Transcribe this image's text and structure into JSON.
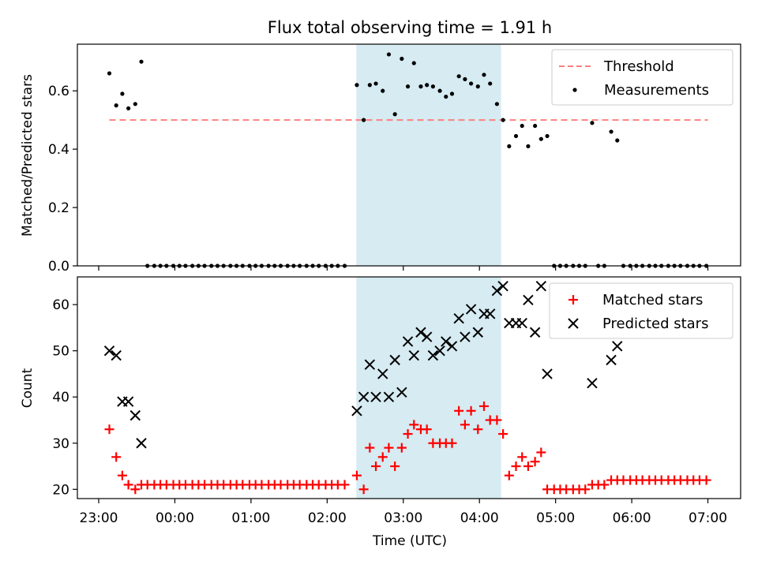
{
  "figure": {
    "title": "Flux total observing time = 1.91 h"
  },
  "colors": {
    "threshold": "#ff8080",
    "measurements": "#000000",
    "matched": "#ff0000",
    "predicted": "#000000",
    "shade": "#add8e6"
  },
  "chart_data": [
    {
      "type": "scatter",
      "title": "Flux total observing time = 1.91 h",
      "xlabel": "",
      "ylabel": "Matched/Predicted stars",
      "x_unit": "hours since 23:00 UTC (tick labels show clock time)",
      "xlim": [
        -0.28,
        8.43
      ],
      "ylim": [
        0.0,
        0.76
      ],
      "yticks": [
        0.0,
        0.2,
        0.4,
        0.6
      ],
      "xticks": [
        "23:00",
        "00:00",
        "01:00",
        "02:00",
        "03:00",
        "04:00",
        "05:00",
        "06:00",
        "07:00"
      ],
      "shaded_interval": [
        "02:23",
        "04:17"
      ],
      "legend": {
        "position": "upper right",
        "entries": [
          "Threshold",
          "Measurements"
        ]
      },
      "series": [
        {
          "name": "Threshold",
          "style": "dashed-line",
          "x": [
            0.14,
            8.0
          ],
          "y": [
            0.5,
            0.5
          ]
        },
        {
          "name": "Measurements",
          "style": "dot",
          "points": [
            [
              0.14,
              0.66
            ],
            [
              0.23,
              0.55
            ],
            [
              0.31,
              0.59
            ],
            [
              0.39,
              0.54
            ],
            [
              0.48,
              0.555
            ],
            [
              0.56,
              0.7
            ],
            [
              0.64,
              0.0
            ],
            [
              0.73,
              0.0
            ],
            [
              0.81,
              0.0
            ],
            [
              0.89,
              0.0
            ],
            [
              0.98,
              0.0
            ],
            [
              1.06,
              0.0
            ],
            [
              1.14,
              0.0
            ],
            [
              1.23,
              0.0
            ],
            [
              1.31,
              0.0
            ],
            [
              1.39,
              0.0
            ],
            [
              1.48,
              0.0
            ],
            [
              1.56,
              0.0
            ],
            [
              1.64,
              0.0
            ],
            [
              1.73,
              0.0
            ],
            [
              1.81,
              0.0
            ],
            [
              1.89,
              0.0
            ],
            [
              1.98,
              0.0
            ],
            [
              2.06,
              0.0
            ],
            [
              2.14,
              0.0
            ],
            [
              2.23,
              0.0
            ],
            [
              2.31,
              0.0
            ],
            [
              2.39,
              0.0
            ],
            [
              2.48,
              0.0
            ],
            [
              2.56,
              0.0
            ],
            [
              2.64,
              0.0
            ],
            [
              2.73,
              0.0
            ],
            [
              2.81,
              0.0
            ],
            [
              2.89,
              0.0
            ],
            [
              2.98,
              0.0
            ],
            [
              3.06,
              0.0
            ],
            [
              3.14,
              0.0
            ],
            [
              3.23,
              0.0
            ],
            [
              3.39,
              0.62
            ],
            [
              3.48,
              0.5
            ],
            [
              3.56,
              0.62
            ],
            [
              3.64,
              0.625
            ],
            [
              3.73,
              0.6
            ],
            [
              3.81,
              0.725
            ],
            [
              3.89,
              0.52
            ],
            [
              3.98,
              0.71
            ],
            [
              4.06,
              0.615
            ],
            [
              4.14,
              0.695
            ],
            [
              4.23,
              0.615
            ],
            [
              4.31,
              0.62
            ],
            [
              4.39,
              0.615
            ],
            [
              4.48,
              0.6
            ],
            [
              4.56,
              0.58
            ],
            [
              4.64,
              0.59
            ],
            [
              4.73,
              0.65
            ],
            [
              4.81,
              0.64
            ],
            [
              4.89,
              0.625
            ],
            [
              4.98,
              0.615
            ],
            [
              5.06,
              0.655
            ],
            [
              5.14,
              0.625
            ],
            [
              5.23,
              0.555
            ],
            [
              5.31,
              0.5
            ],
            [
              5.39,
              0.41
            ],
            [
              5.48,
              0.445
            ],
            [
              5.56,
              0.48
            ],
            [
              5.64,
              0.41
            ],
            [
              5.73,
              0.48
            ],
            [
              5.81,
              0.435
            ],
            [
              5.89,
              0.445
            ],
            [
              5.98,
              0.0
            ],
            [
              6.06,
              0.0
            ],
            [
              6.14,
              0.0
            ],
            [
              6.23,
              0.0
            ],
            [
              6.31,
              0.0
            ],
            [
              6.39,
              0.0
            ],
            [
              6.56,
              0.0
            ],
            [
              6.64,
              0.0
            ],
            [
              6.48,
              0.49
            ],
            [
              6.73,
              0.46
            ],
            [
              6.81,
              0.43
            ],
            [
              6.89,
              0.0
            ],
            [
              6.98,
              0.0
            ],
            [
              7.06,
              0.0
            ],
            [
              7.14,
              0.0
            ],
            [
              7.23,
              0.0
            ],
            [
              7.31,
              0.0
            ],
            [
              7.39,
              0.0
            ],
            [
              7.48,
              0.0
            ],
            [
              7.56,
              0.0
            ],
            [
              7.64,
              0.0
            ],
            [
              7.73,
              0.0
            ],
            [
              7.81,
              0.0
            ],
            [
              7.89,
              0.0
            ],
            [
              7.98,
              0.0
            ]
          ]
        }
      ]
    },
    {
      "type": "scatter",
      "title": "",
      "xlabel": "Time (UTC)",
      "ylabel": "Count",
      "x_unit": "hours since 23:00 UTC (tick labels show clock time)",
      "xlim": [
        -0.28,
        8.43
      ],
      "ylim": [
        18.0,
        66.0
      ],
      "yticks": [
        20,
        30,
        40,
        50,
        60
      ],
      "xticks": [
        "23:00",
        "00:00",
        "01:00",
        "02:00",
        "03:00",
        "04:00",
        "05:00",
        "06:00",
        "07:00"
      ],
      "shaded_interval": [
        "02:23",
        "04:17"
      ],
      "legend": {
        "position": "upper right",
        "entries": [
          "Matched stars",
          "Predicted stars"
        ]
      },
      "series": [
        {
          "name": "Matched stars",
          "style": "plus",
          "points": [
            [
              0.14,
              33
            ],
            [
              0.23,
              27
            ],
            [
              0.31,
              23
            ],
            [
              0.39,
              21
            ],
            [
              0.48,
              20
            ],
            [
              0.56,
              21
            ],
            [
              0.64,
              21
            ],
            [
              0.73,
              21
            ],
            [
              0.81,
              21
            ],
            [
              0.89,
              21
            ],
            [
              0.98,
              21
            ],
            [
              1.06,
              21
            ],
            [
              1.14,
              21
            ],
            [
              1.23,
              21
            ],
            [
              1.31,
              21
            ],
            [
              1.39,
              21
            ],
            [
              1.48,
              21
            ],
            [
              1.56,
              21
            ],
            [
              1.64,
              21
            ],
            [
              1.73,
              21
            ],
            [
              1.81,
              21
            ],
            [
              1.89,
              21
            ],
            [
              1.98,
              21
            ],
            [
              2.06,
              21
            ],
            [
              2.14,
              21
            ],
            [
              2.23,
              21
            ],
            [
              2.31,
              21
            ],
            [
              2.39,
              21
            ],
            [
              2.48,
              21
            ],
            [
              2.56,
              21
            ],
            [
              2.64,
              21
            ],
            [
              2.73,
              21
            ],
            [
              2.81,
              21
            ],
            [
              2.89,
              21
            ],
            [
              2.98,
              21
            ],
            [
              3.06,
              21
            ],
            [
              3.14,
              21
            ],
            [
              3.23,
              21
            ],
            [
              3.39,
              23
            ],
            [
              3.48,
              20
            ],
            [
              3.56,
              29
            ],
            [
              3.64,
              25
            ],
            [
              3.73,
              27
            ],
            [
              3.81,
              29
            ],
            [
              3.89,
              25
            ],
            [
              3.98,
              29
            ],
            [
              4.06,
              32
            ],
            [
              4.14,
              34
            ],
            [
              4.23,
              33
            ],
            [
              4.31,
              33
            ],
            [
              4.39,
              30
            ],
            [
              4.48,
              30
            ],
            [
              4.56,
              30
            ],
            [
              4.64,
              30
            ],
            [
              4.73,
              37
            ],
            [
              4.81,
              34
            ],
            [
              4.89,
              37
            ],
            [
              4.98,
              33
            ],
            [
              5.06,
              38
            ],
            [
              5.14,
              35
            ],
            [
              5.23,
              35
            ],
            [
              5.31,
              32
            ],
            [
              5.39,
              23
            ],
            [
              5.48,
              25
            ],
            [
              5.56,
              27
            ],
            [
              5.64,
              25
            ],
            [
              5.73,
              26
            ],
            [
              5.81,
              28
            ],
            [
              5.89,
              20
            ],
            [
              5.98,
              20
            ],
            [
              6.06,
              20
            ],
            [
              6.14,
              20
            ],
            [
              6.23,
              20
            ],
            [
              6.31,
              20
            ],
            [
              6.39,
              20
            ],
            [
              6.48,
              21
            ],
            [
              6.56,
              21
            ],
            [
              6.64,
              21
            ],
            [
              6.73,
              22
            ],
            [
              6.81,
              22
            ],
            [
              6.89,
              22
            ],
            [
              6.98,
              22
            ],
            [
              7.06,
              22
            ],
            [
              7.14,
              22
            ],
            [
              7.23,
              22
            ],
            [
              7.31,
              22
            ],
            [
              7.39,
              22
            ],
            [
              7.48,
              22
            ],
            [
              7.56,
              22
            ],
            [
              7.64,
              22
            ],
            [
              7.73,
              22
            ],
            [
              7.81,
              22
            ],
            [
              7.89,
              22
            ],
            [
              7.98,
              22
            ]
          ]
        },
        {
          "name": "Predicted stars",
          "style": "x",
          "points": [
            [
              0.14,
              50
            ],
            [
              0.23,
              49
            ],
            [
              0.31,
              39
            ],
            [
              0.39,
              39
            ],
            [
              0.48,
              36
            ],
            [
              0.56,
              30
            ],
            [
              3.39,
              37
            ],
            [
              3.48,
              40
            ],
            [
              3.56,
              47
            ],
            [
              3.64,
              40
            ],
            [
              3.73,
              45
            ],
            [
              3.81,
              40
            ],
            [
              3.89,
              48
            ],
            [
              3.98,
              41
            ],
            [
              4.06,
              52
            ],
            [
              4.14,
              49
            ],
            [
              4.23,
              54
            ],
            [
              4.31,
              53
            ],
            [
              4.39,
              49
            ],
            [
              4.48,
              50
            ],
            [
              4.56,
              52
            ],
            [
              4.64,
              51
            ],
            [
              4.73,
              57
            ],
            [
              4.81,
              53
            ],
            [
              4.89,
              59
            ],
            [
              4.98,
              54
            ],
            [
              5.06,
              58
            ],
            [
              5.14,
              58
            ],
            [
              5.23,
              63
            ],
            [
              5.31,
              64
            ],
            [
              5.39,
              56
            ],
            [
              5.48,
              56
            ],
            [
              5.56,
              56
            ],
            [
              5.64,
              61
            ],
            [
              5.73,
              54
            ],
            [
              5.81,
              64
            ],
            [
              5.89,
              45
            ],
            [
              6.48,
              43
            ],
            [
              6.73,
              48
            ],
            [
              6.81,
              51
            ]
          ]
        }
      ]
    }
  ]
}
